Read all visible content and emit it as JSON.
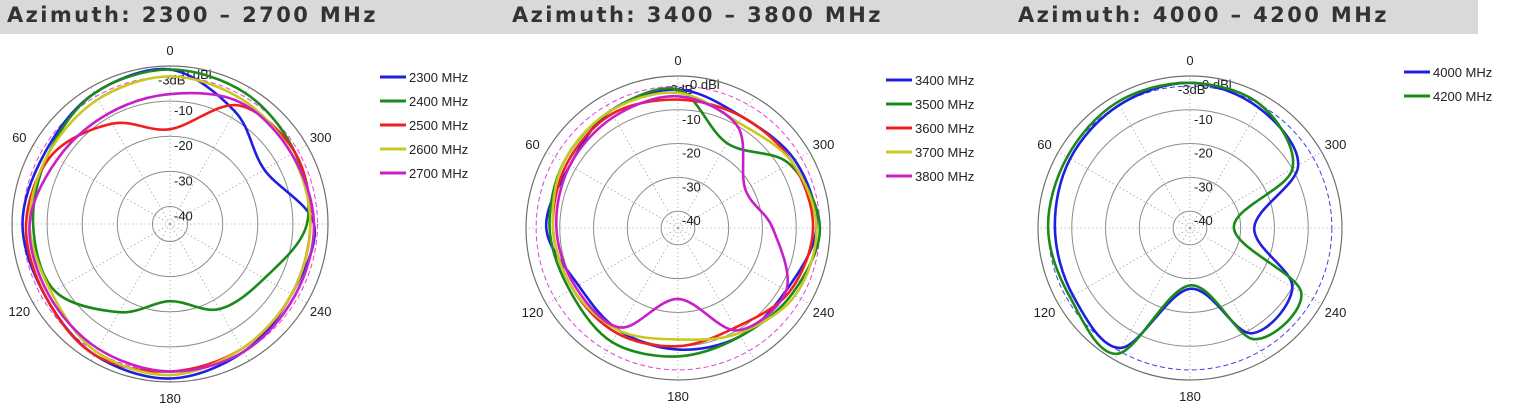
{
  "colors": {
    "blue": "#1f1fe0",
    "green": "#1a8a1a",
    "red": "#f02020",
    "yellow": "#c8c820",
    "magenta": "#c820c8",
    "header_bg": "#d9d9d9",
    "grid": "#8c8c8c"
  },
  "chart_data": [
    {
      "type": "polar-line",
      "title": "Azimuth: 2300 – 2700 MHz",
      "r_unit": "dBi",
      "r_ticks": [
        "0 dBi",
        "-3dB",
        "-10",
        "-20",
        "-30",
        "-40"
      ],
      "angle_labels": [
        "0",
        "60",
        "120",
        "180",
        "240",
        "300"
      ],
      "reference_ring": {
        "label": "-3dB",
        "color": "#e040e0"
      },
      "angles_deg": [
        0,
        30,
        60,
        90,
        120,
        150,
        180,
        210,
        240,
        270,
        300,
        330
      ],
      "series": [
        {
          "name": "2300 MHz",
          "color": "#1f1fe0",
          "values": [
            -1,
            -2,
            -4,
            -3,
            -4,
            -2,
            -1,
            -3,
            -5,
            -4,
            -14,
            -8
          ]
        },
        {
          "name": "2400 MHz",
          "color": "#1a8a1a",
          "values": [
            -1,
            -2,
            -5,
            -6,
            -7,
            -16,
            -23,
            -17,
            -14,
            -6,
            -4,
            -2
          ]
        },
        {
          "name": "2500 MHz",
          "color": "#f02020",
          "values": [
            -18,
            -12,
            -6,
            -4,
            -4,
            -2,
            -3,
            -4,
            -5,
            -5,
            -4,
            -6
          ]
        },
        {
          "name": "2600 MHz",
          "color": "#c8c820",
          "values": [
            -3,
            -4,
            -5,
            -5,
            -6,
            -3,
            -2,
            -4,
            -5,
            -5,
            -5,
            -4
          ]
        },
        {
          "name": "2700 MHz",
          "color": "#c820c8",
          "values": [
            -8,
            -9,
            -8,
            -5,
            -5,
            -4,
            -3,
            -3,
            -4,
            -4,
            -5,
            -5
          ]
        }
      ]
    },
    {
      "type": "polar-line",
      "title": "Azimuth: 3400 – 3800 MHz",
      "r_unit": "dBi",
      "r_ticks": [
        "0 dBi",
        "-3dB",
        "-10",
        "-20",
        "-30",
        "-40"
      ],
      "angle_labels": [
        "0",
        "60",
        "120",
        "180",
        "240",
        "300"
      ],
      "reference_ring": {
        "label": "-3dB",
        "color": "#e040e0"
      },
      "angles_deg": [
        0,
        30,
        60,
        90,
        120,
        150,
        180,
        210,
        240,
        270,
        300,
        330
      ],
      "series": [
        {
          "name": "3400 MHz",
          "color": "#1f1fe0",
          "values": [
            -4,
            -5,
            -8,
            -6,
            -11,
            -10,
            -9,
            -8,
            -8,
            -4,
            -5,
            -7
          ]
        },
        {
          "name": "3500 MHz",
          "color": "#1a8a1a",
          "values": [
            -4,
            -5,
            -6,
            -7,
            -8,
            -6,
            -7,
            -8,
            -6,
            -3,
            -7,
            -16
          ]
        },
        {
          "name": "3600 MHz",
          "color": "#f02020",
          "values": [
            -7,
            -6,
            -7,
            -8,
            -9,
            -9,
            -10,
            -11,
            -7,
            -5,
            -6,
            -7
          ]
        },
        {
          "name": "3700 MHz",
          "color": "#c8c820",
          "values": [
            -5,
            -5,
            -6,
            -8,
            -9,
            -10,
            -12,
            -9,
            -5,
            -4,
            -6,
            -9
          ]
        },
        {
          "name": "3800 MHz",
          "color": "#c820c8",
          "values": [
            -6,
            -7,
            -8,
            -9,
            -10,
            -11,
            -24,
            -10,
            -8,
            -17,
            -22,
            -10
          ]
        }
      ]
    },
    {
      "type": "polar-line",
      "title": "Azimuth: 4000 – 4200 MHz",
      "r_unit": "dBi",
      "r_ticks": [
        "0 dBi",
        "-3dB",
        "-10",
        "-20",
        "-30",
        "-40"
      ],
      "angle_labels": [
        "0",
        "60",
        "120",
        "180",
        "240",
        "300"
      ],
      "reference_ring": {
        "label": "-3dB",
        "color": "#4040e0"
      },
      "angles_deg": [
        0,
        30,
        60,
        90,
        120,
        150,
        180,
        210,
        240,
        270,
        300,
        330
      ],
      "series": [
        {
          "name": "4000 MHz",
          "color": "#1f1fe0",
          "values": [
            -2,
            -3,
            -4,
            -5,
            -5,
            -4,
            -27,
            -9,
            -10,
            -26,
            -8,
            -4
          ]
        },
        {
          "name": "4200 MHz",
          "color": "#1a8a1a",
          "values": [
            -2,
            -2,
            -3,
            -3,
            -4,
            -2,
            -28,
            -7,
            -7,
            -32,
            -10,
            -3
          ]
        }
      ]
    }
  ]
}
